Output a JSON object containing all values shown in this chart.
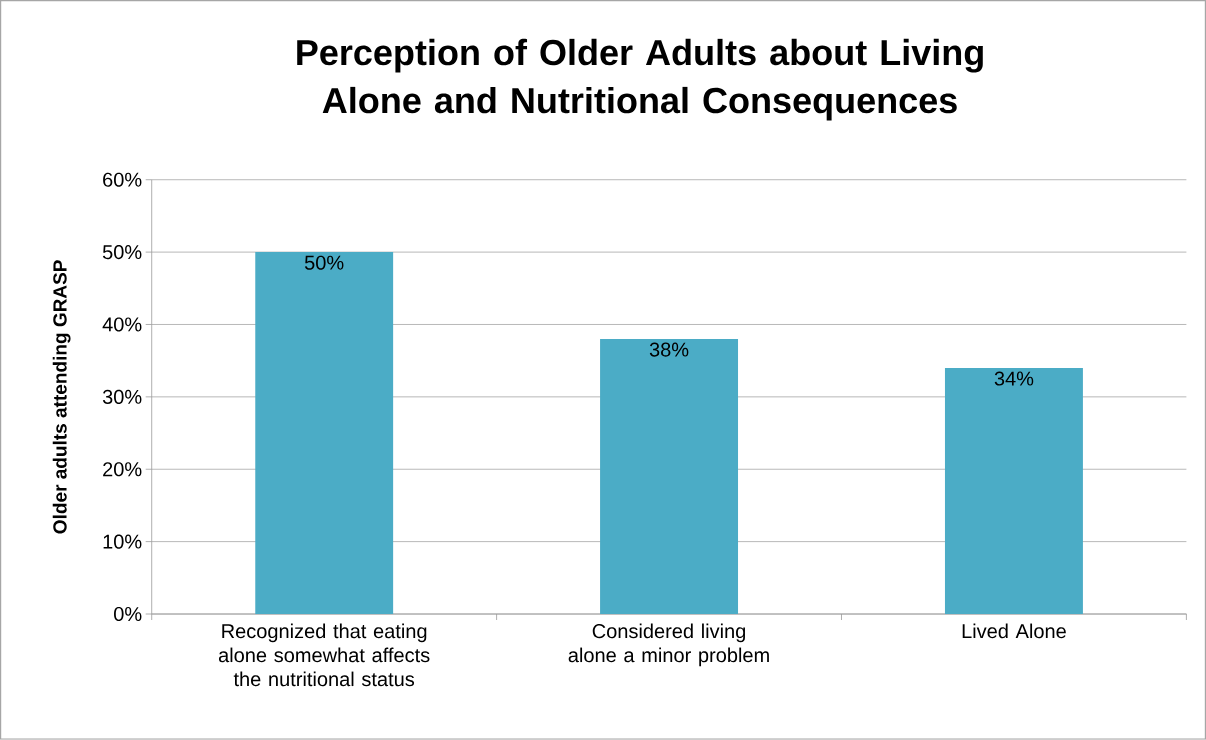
{
  "chart_data": {
    "type": "bar",
    "title": "Perception of Older Adults about Living Alone and Nutritional Consequences",
    "ylabel": "Older adults attending GRASP",
    "categories": [
      "Recognized that eating alone somewhat affects the nutritional status",
      "Considered living alone a minor problem",
      "Lived Alone"
    ],
    "values": [
      50,
      38,
      34
    ],
    "value_labels": [
      "50%",
      "38%",
      "34%"
    ],
    "color": "#4bacc6",
    "ylim": [
      0,
      60
    ],
    "yticks": [
      {
        "value": 0,
        "label": "0%"
      },
      {
        "value": 10,
        "label": "10%"
      },
      {
        "value": 20,
        "label": "20%"
      },
      {
        "value": 30,
        "label": "30%"
      },
      {
        "value": 40,
        "label": "40%"
      },
      {
        "value": 50,
        "label": "50%"
      },
      {
        "value": 60,
        "label": "60%"
      }
    ],
    "grid": "y"
  }
}
